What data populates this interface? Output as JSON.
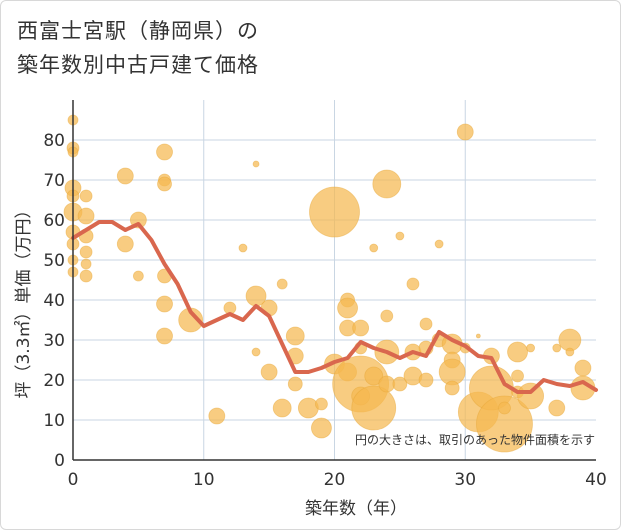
{
  "chart_data": {
    "type": "scatter",
    "title_line1": "西富士宮駅（静岡県）の",
    "title_line2": "築年数別中古戸建て価格",
    "xlabel": "築年数（年）",
    "ylabel": "坪（3.3㎡）単価（万円）",
    "note": "円の大きさは、取引のあった物件面積を示す",
    "xlim": [
      0,
      40
    ],
    "ylim": [
      0,
      90
    ],
    "xticks": [
      "0",
      "10",
      "20",
      "30",
      "40"
    ],
    "yticks": [
      "0",
      "10",
      "20",
      "30",
      "40",
      "50",
      "60",
      "70",
      "80"
    ],
    "grid": true,
    "colors": {
      "bubble": "#f5b850",
      "line": "#d9674e",
      "grid": "#c9d6e3"
    },
    "series": [
      {
        "type": "bubble",
        "points": [
          {
            "x": 0,
            "y": 85,
            "s": 5
          },
          {
            "x": 0,
            "y": 78,
            "s": 6
          },
          {
            "x": 0,
            "y": 77,
            "s": 5
          },
          {
            "x": 0,
            "y": 68,
            "s": 8
          },
          {
            "x": 0,
            "y": 66,
            "s": 6
          },
          {
            "x": 0,
            "y": 62,
            "s": 9
          },
          {
            "x": 0,
            "y": 57,
            "s": 7
          },
          {
            "x": 0,
            "y": 54,
            "s": 6
          },
          {
            "x": 0,
            "y": 50,
            "s": 5
          },
          {
            "x": 0,
            "y": 47,
            "s": 5
          },
          {
            "x": 1,
            "y": 66,
            "s": 6
          },
          {
            "x": 1,
            "y": 61,
            "s": 8
          },
          {
            "x": 1,
            "y": 56,
            "s": 7
          },
          {
            "x": 1,
            "y": 52,
            "s": 6
          },
          {
            "x": 1,
            "y": 49,
            "s": 5
          },
          {
            "x": 1,
            "y": 46,
            "s": 6
          },
          {
            "x": 4,
            "y": 71,
            "s": 8
          },
          {
            "x": 4,
            "y": 54,
            "s": 8
          },
          {
            "x": 5,
            "y": 60,
            "s": 8
          },
          {
            "x": 5,
            "y": 46,
            "s": 5
          },
          {
            "x": 7,
            "y": 77,
            "s": 8
          },
          {
            "x": 7,
            "y": 70,
            "s": 6
          },
          {
            "x": 7,
            "y": 69,
            "s": 7
          },
          {
            "x": 7,
            "y": 46,
            "s": 7
          },
          {
            "x": 7,
            "y": 39,
            "s": 8
          },
          {
            "x": 7,
            "y": 31,
            "s": 8
          },
          {
            "x": 9,
            "y": 35,
            "s": 12
          },
          {
            "x": 11,
            "y": 11,
            "s": 8
          },
          {
            "x": 12,
            "y": 38,
            "s": 6
          },
          {
            "x": 13,
            "y": 53,
            "s": 4
          },
          {
            "x": 14,
            "y": 74,
            "s": 3
          },
          {
            "x": 14,
            "y": 41,
            "s": 10
          },
          {
            "x": 14,
            "y": 27,
            "s": 4
          },
          {
            "x": 15,
            "y": 38,
            "s": 8
          },
          {
            "x": 15,
            "y": 22,
            "s": 8
          },
          {
            "x": 16,
            "y": 44,
            "s": 5
          },
          {
            "x": 16,
            "y": 13,
            "s": 9
          },
          {
            "x": 17,
            "y": 31,
            "s": 9
          },
          {
            "x": 17,
            "y": 26,
            "s": 8
          },
          {
            "x": 17,
            "y": 19,
            "s": 7
          },
          {
            "x": 18,
            "y": 13,
            "s": 10
          },
          {
            "x": 19,
            "y": 8,
            "s": 10
          },
          {
            "x": 19,
            "y": 14,
            "s": 6
          },
          {
            "x": 20,
            "y": 62,
            "s": 25
          },
          {
            "x": 20,
            "y": 24,
            "s": 10
          },
          {
            "x": 21,
            "y": 40,
            "s": 7
          },
          {
            "x": 21,
            "y": 38,
            "s": 10
          },
          {
            "x": 21,
            "y": 33,
            "s": 8
          },
          {
            "x": 21,
            "y": 22,
            "s": 9
          },
          {
            "x": 22,
            "y": 33,
            "s": 8
          },
          {
            "x": 22,
            "y": 28,
            "s": 6
          },
          {
            "x": 22,
            "y": 19,
            "s": 28
          },
          {
            "x": 22,
            "y": 16,
            "s": 9
          },
          {
            "x": 23,
            "y": 53,
            "s": 4
          },
          {
            "x": 23,
            "y": 21,
            "s": 9
          },
          {
            "x": 23,
            "y": 13,
            "s": 22
          },
          {
            "x": 24,
            "y": 69,
            "s": 14
          },
          {
            "x": 24,
            "y": 36,
            "s": 6
          },
          {
            "x": 24,
            "y": 27,
            "s": 12
          },
          {
            "x": 24,
            "y": 19,
            "s": 8
          },
          {
            "x": 25,
            "y": 56,
            "s": 4
          },
          {
            "x": 25,
            "y": 19,
            "s": 7
          },
          {
            "x": 26,
            "y": 44,
            "s": 6
          },
          {
            "x": 26,
            "y": 27,
            "s": 8
          },
          {
            "x": 26,
            "y": 21,
            "s": 9
          },
          {
            "x": 27,
            "y": 34,
            "s": 6
          },
          {
            "x": 27,
            "y": 28,
            "s": 7
          },
          {
            "x": 27,
            "y": 20,
            "s": 7
          },
          {
            "x": 28,
            "y": 54,
            "s": 4
          },
          {
            "x": 28,
            "y": 30,
            "s": 7
          },
          {
            "x": 29,
            "y": 29,
            "s": 10
          },
          {
            "x": 29,
            "y": 25,
            "s": 8
          },
          {
            "x": 29,
            "y": 22,
            "s": 13
          },
          {
            "x": 29,
            "y": 18,
            "s": 7
          },
          {
            "x": 30,
            "y": 82,
            "s": 8
          },
          {
            "x": 30,
            "y": 28,
            "s": 5
          },
          {
            "x": 31,
            "y": 12,
            "s": 20
          },
          {
            "x": 31,
            "y": 31,
            "s": 2
          },
          {
            "x": 32,
            "y": 26,
            "s": 8
          },
          {
            "x": 32,
            "y": 18,
            "s": 22
          },
          {
            "x": 33,
            "y": 9,
            "s": 28
          },
          {
            "x": 33,
            "y": 13,
            "s": 6
          },
          {
            "x": 34,
            "y": 27,
            "s": 10
          },
          {
            "x": 34,
            "y": 21,
            "s": 6
          },
          {
            "x": 34,
            "y": 17,
            "s": 6
          },
          {
            "x": 35,
            "y": 16,
            "s": 13
          },
          {
            "x": 35,
            "y": 28,
            "s": 4
          },
          {
            "x": 37,
            "y": 13,
            "s": 8
          },
          {
            "x": 37,
            "y": 28,
            "s": 4
          },
          {
            "x": 38,
            "y": 30,
            "s": 11
          },
          {
            "x": 38,
            "y": 27,
            "s": 4
          },
          {
            "x": 39,
            "y": 23,
            "s": 8
          },
          {
            "x": 39,
            "y": 18,
            "s": 12
          }
        ]
      },
      {
        "type": "line",
        "x": [
          0,
          1,
          2,
          3,
          4,
          5,
          6,
          7,
          8,
          9,
          10,
          11,
          12,
          13,
          14,
          15,
          16,
          17,
          18,
          19,
          20,
          21,
          22,
          23,
          24,
          25,
          26,
          27,
          28,
          29,
          30,
          31,
          32,
          33,
          34,
          35,
          36,
          37,
          38,
          39,
          40
        ],
        "y": [
          55.5,
          57.5,
          59.5,
          59.5,
          57.5,
          59,
          55,
          49,
          44,
          37,
          33.5,
          35,
          36.5,
          35,
          38.5,
          36,
          29,
          22,
          22,
          23,
          24.5,
          25.5,
          29.5,
          28,
          27,
          25.5,
          27,
          26,
          32,
          30,
          28.5,
          26,
          25.5,
          19,
          17,
          17,
          20,
          19,
          18.5,
          19.5,
          17.5
        ]
      }
    ]
  }
}
